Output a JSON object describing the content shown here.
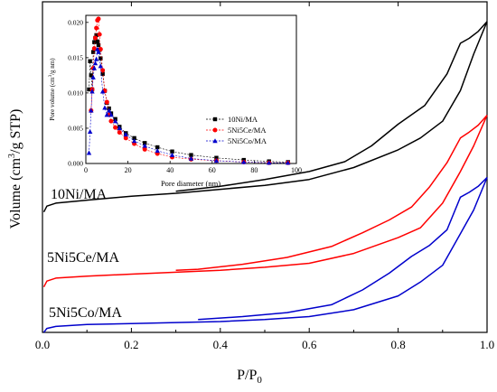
{
  "chart_data": [
    {
      "type": "line",
      "xlabel_main": "P/P",
      "xlabel_sub": "0",
      "ylabel_parts": [
        "Volume (cm",
        "3",
        "/g STP)"
      ],
      "xlim": [
        0.0,
        1.0
      ],
      "x_ticks": [
        "0.0",
        "0.2",
        "0.4",
        "0.6",
        "0.8",
        "1.0"
      ],
      "y_ticks_shown": false,
      "ylim": [
        0,
        335
      ],
      "series": [
        {
          "name": "10Ni/MA",
          "color": "#000000",
          "adsorption": [
            [
              0.003,
              122
            ],
            [
              0.01,
              128
            ],
            [
              0.03,
              131
            ],
            [
              0.1,
              134
            ],
            [
              0.2,
              138
            ],
            [
              0.3,
              141
            ],
            [
              0.4,
              145
            ],
            [
              0.5,
              149
            ],
            [
              0.6,
              155
            ],
            [
              0.7,
              167
            ],
            [
              0.8,
              185
            ],
            [
              0.85,
              197
            ],
            [
              0.9,
              214
            ],
            [
              0.94,
              245
            ],
            [
              0.97,
              282
            ],
            [
              1.0,
              315
            ]
          ],
          "desorption": [
            [
              1.0,
              315
            ],
            [
              0.98,
              305
            ],
            [
              0.96,
              298
            ],
            [
              0.94,
              293
            ],
            [
              0.91,
              262
            ],
            [
              0.86,
              230
            ],
            [
              0.8,
              211
            ],
            [
              0.74,
              189
            ],
            [
              0.68,
              173
            ],
            [
              0.6,
              163
            ],
            [
              0.5,
              155
            ],
            [
              0.4,
              148
            ],
            [
              0.3,
              143
            ]
          ]
        },
        {
          "name": "5Ni5Ce/MA",
          "color": "#ff0000",
          "adsorption": [
            [
              0.003,
              46
            ],
            [
              0.01,
              52
            ],
            [
              0.03,
              55
            ],
            [
              0.1,
              57
            ],
            [
              0.2,
              59
            ],
            [
              0.3,
              61
            ],
            [
              0.4,
              63
            ],
            [
              0.5,
              66
            ],
            [
              0.6,
              70
            ],
            [
              0.7,
              80
            ],
            [
              0.8,
              96
            ],
            [
              0.85,
              106
            ],
            [
              0.9,
              131
            ],
            [
              0.94,
              163
            ],
            [
              0.97,
              189
            ],
            [
              1.0,
              220
            ]
          ],
          "desorption": [
            [
              1.0,
              220
            ],
            [
              0.98,
              210
            ],
            [
              0.96,
              203
            ],
            [
              0.94,
              197
            ],
            [
              0.91,
              172
            ],
            [
              0.87,
              147
            ],
            [
              0.83,
              127
            ],
            [
              0.78,
              114
            ],
            [
              0.72,
              101
            ],
            [
              0.65,
              87
            ],
            [
              0.55,
              76
            ],
            [
              0.45,
              69
            ],
            [
              0.35,
              64
            ],
            [
              0.3,
              63
            ]
          ]
        },
        {
          "name": "5Ni5Co/MA",
          "color": "#0000cc",
          "adsorption": [
            [
              0.003,
              0
            ],
            [
              0.01,
              4
            ],
            [
              0.03,
              6
            ],
            [
              0.1,
              8
            ],
            [
              0.2,
              9
            ],
            [
              0.3,
              10
            ],
            [
              0.4,
              11
            ],
            [
              0.5,
              13
            ],
            [
              0.6,
              16
            ],
            [
              0.7,
              23
            ],
            [
              0.8,
              37
            ],
            [
              0.85,
              51
            ],
            [
              0.9,
              68
            ],
            [
              0.94,
              100
            ],
            [
              0.97,
              124
            ],
            [
              1.0,
              157
            ]
          ],
          "desorption": [
            [
              1.0,
              157
            ],
            [
              0.98,
              148
            ],
            [
              0.96,
              142
            ],
            [
              0.94,
              137
            ],
            [
              0.91,
              104
            ],
            [
              0.87,
              88
            ],
            [
              0.83,
              77
            ],
            [
              0.78,
              60
            ],
            [
              0.72,
              43
            ],
            [
              0.65,
              28
            ],
            [
              0.55,
              20
            ],
            [
              0.45,
              16
            ],
            [
              0.35,
              13
            ]
          ]
        }
      ],
      "series_labels": [
        "10Ni/MA",
        "5Ni5Ce/MA",
        "5Ni5Co/MA"
      ]
    },
    {
      "type": "scatter",
      "xlabel": "Pore diameter (nm)",
      "ylabel_parts": [
        "Pore volume (cm",
        "3",
        "/g nm)"
      ],
      "xlim": [
        0,
        100
      ],
      "ylim": [
        0,
        0.021
      ],
      "x_ticks": [
        "0",
        "20",
        "40",
        "60",
        "80",
        "100"
      ],
      "y_ticks": [
        "0.000",
        "0.005",
        "0.010",
        "0.015",
        "0.020"
      ],
      "y_tick_values": [
        0,
        0.005,
        0.01,
        0.015,
        0.02
      ],
      "legend_position": "right",
      "series": [
        {
          "name": "10Ni/MA",
          "color": "#000000",
          "marker": "square",
          "x": [
            1.5,
            2.0,
            2.5,
            3.0,
            3.5,
            4.0,
            4.5,
            5.0,
            5.5,
            6.0,
            6.5,
            7.0,
            8.0,
            9.0,
            10.0,
            11.0,
            12.0,
            14.0,
            16.0,
            19.0,
            23.0,
            28.0,
            34.0,
            41.0,
            50.0,
            62.0,
            75.0,
            87.0,
            96.0
          ],
          "y": [
            0.0105,
            0.0145,
            0.0125,
            0.0105,
            0.0158,
            0.0172,
            0.0178,
            0.0182,
            0.0173,
            0.0168,
            0.0161,
            0.0149,
            0.0127,
            0.0103,
            0.0086,
            0.0078,
            0.0071,
            0.0063,
            0.0052,
            0.0043,
            0.0036,
            0.0029,
            0.0023,
            0.0017,
            0.0012,
            0.0008,
            0.0005,
            0.0003,
            0.0002
          ]
        },
        {
          "name": "5Ni5Ce/MA",
          "color": "#ff0000",
          "marker": "circle",
          "x": [
            2.5,
            3.0,
            3.5,
            4.0,
            4.5,
            5.0,
            5.5,
            6.0,
            6.5,
            7.0,
            8.0,
            9.0,
            10.0,
            11.0,
            12.0,
            14.0,
            16.0,
            19.0,
            23.0,
            28.0,
            34.0,
            41.0,
            50.0,
            62.0,
            75.0,
            87.0,
            96.0
          ],
          "y": [
            0.0075,
            0.0105,
            0.0135,
            0.0163,
            0.0178,
            0.0192,
            0.0203,
            0.0205,
            0.0183,
            0.0162,
            0.0132,
            0.0103,
            0.0087,
            0.0069,
            0.006,
            0.0051,
            0.0044,
            0.0036,
            0.0028,
            0.002,
            0.0014,
            0.0009,
            0.0006,
            0.0004,
            0.0002,
            0.0001,
            0.0001
          ]
        },
        {
          "name": "5Ni5Co/MA",
          "color": "#0000cc",
          "marker": "triangle",
          "x": [
            1.5,
            2.0,
            2.5,
            3.0,
            3.5,
            4.0,
            4.5,
            5.0,
            5.5,
            6.0,
            7.0,
            8.0,
            9.0,
            10.0,
            11.0,
            12.0,
            14.0,
            16.0,
            19.0,
            23.0,
            28.0,
            34.0,
            41.0,
            50.0,
            62.0,
            75.0,
            87.0,
            96.0
          ],
          "y": [
            0.0015,
            0.0045,
            0.0075,
            0.0102,
            0.0122,
            0.0135,
            0.0142,
            0.0148,
            0.0162,
            0.0158,
            0.0138,
            0.0102,
            0.0079,
            0.0069,
            0.0075,
            0.0069,
            0.006,
            0.005,
            0.0041,
            0.0032,
            0.0025,
            0.0018,
            0.0012,
            0.0007,
            0.0004,
            0.0002,
            0.0001,
            0.0001
          ]
        }
      ]
    }
  ]
}
